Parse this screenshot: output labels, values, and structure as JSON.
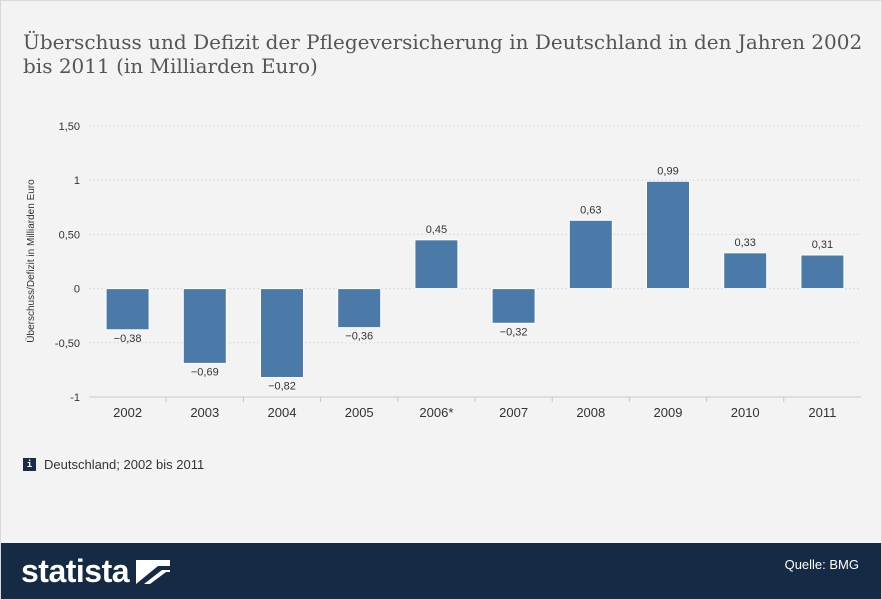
{
  "title": "Überschuss und Defizit der Pflegeversicherung in Deutschland in den Jahren 2002 bis 2011 (in Milliarden Euro)",
  "note": "Deutschland; 2002 bis 2011",
  "source": "Quelle: BMG",
  "brand": "statista",
  "colors": {
    "bar": "#4b7aa8",
    "background": "#f3f3f4",
    "footer": "#152a44"
  },
  "chart_data": {
    "type": "bar",
    "categories": [
      "2002",
      "2003",
      "2004",
      "2005",
      "2006*",
      "2007",
      "2008",
      "2009",
      "2010",
      "2011"
    ],
    "values": [
      -0.38,
      -0.69,
      -0.82,
      -0.36,
      0.45,
      -0.32,
      0.63,
      0.99,
      0.33,
      0.31
    ],
    "value_labels": [
      "−0,38",
      "−0,69",
      "−0,82",
      "−0,36",
      "0,45",
      "−0,32",
      "0,63",
      "0,99",
      "0,33",
      "0,31"
    ],
    "ylabel": "Überschuss/Defizit in Milliarden Euro",
    "ylim": [
      -1,
      1.5
    ],
    "yticks": [
      1.5,
      1,
      0.5,
      0,
      -0.5,
      -1
    ],
    "ytick_labels": [
      "1,50",
      "1",
      "0,50",
      "0",
      "-0,50",
      "-1"
    ],
    "grid": true
  }
}
